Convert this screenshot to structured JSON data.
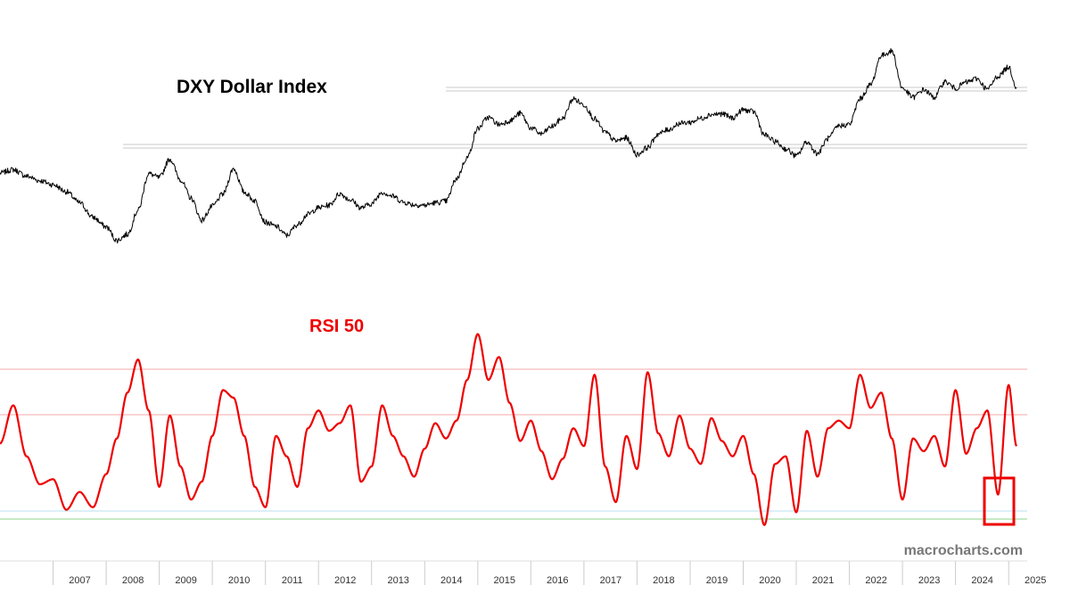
{
  "chart_data": [
    {
      "type": "line",
      "title": "DXY Dollar Index",
      "series": [
        {
          "color": "#000000",
          "x": [
            2006.0,
            2006.25,
            2006.5,
            2006.75,
            2007.0,
            2007.25,
            2007.5,
            2007.75,
            2008.0,
            2008.2,
            2008.4,
            2008.6,
            2008.8,
            2009.0,
            2009.2,
            2009.4,
            2009.6,
            2009.8,
            2010.0,
            2010.2,
            2010.4,
            2010.6,
            2010.8,
            2011.0,
            2011.2,
            2011.4,
            2011.6,
            2011.8,
            2012.0,
            2012.2,
            2012.4,
            2012.6,
            2012.8,
            2013.0,
            2013.2,
            2013.4,
            2013.6,
            2013.8,
            2014.0,
            2014.2,
            2014.4,
            2014.6,
            2014.8,
            2015.0,
            2015.2,
            2015.4,
            2015.6,
            2015.8,
            2016.0,
            2016.2,
            2016.4,
            2016.6,
            2016.8,
            2017.0,
            2017.2,
            2017.4,
            2017.6,
            2017.8,
            2018.0,
            2018.2,
            2018.4,
            2018.6,
            2018.8,
            2019.0,
            2019.2,
            2019.4,
            2019.6,
            2019.8,
            2020.0,
            2020.2,
            2020.4,
            2020.6,
            2020.8,
            2021.0,
            2021.2,
            2021.4,
            2021.6,
            2021.8,
            2022.0,
            2022.2,
            2022.4,
            2022.6,
            2022.8,
            2023.0,
            2023.2,
            2023.4,
            2023.6,
            2023.8,
            2024.0,
            2024.2,
            2024.4,
            2024.6,
            2024.8,
            2025.0,
            2025.15
          ],
          "values": [
            86.5,
            87.2,
            85.9,
            85.0,
            84.2,
            82.8,
            80.6,
            77.7,
            75.8,
            73.1,
            74.3,
            79.1,
            86.4,
            85.6,
            89.3,
            85.2,
            81.5,
            77.1,
            79.9,
            82.3,
            87.4,
            82.7,
            81.0,
            76.7,
            75.9,
            74.1,
            76.2,
            78.3,
            79.6,
            80.1,
            82.4,
            81.2,
            79.6,
            80.4,
            82.7,
            81.9,
            80.7,
            80.2,
            80.1,
            80.6,
            80.9,
            85.4,
            89.6,
            95.4,
            97.6,
            96.2,
            96.9,
            98.4,
            95.5,
            94.3,
            95.8,
            97.4,
            101.3,
            100.1,
            97.3,
            94.6,
            92.9,
            93.5,
            90.2,
            91.6,
            94.3,
            95.2,
            96.4,
            96.6,
            97.4,
            98.2,
            98.3,
            97.5,
            99.1,
            98.7,
            94.1,
            92.8,
            91.3,
            89.9,
            92.7,
            90.4,
            93.4,
            95.9,
            96.2,
            101.3,
            104.1,
            109.9,
            110.8,
            103.4,
            101.6,
            103.1,
            101.6,
            104.7,
            103.4,
            104.6,
            105.3,
            103.2,
            105.8,
            107.6,
            103.6
          ]
        }
      ],
      "ylim": [
        70,
        116
      ]
    },
    {
      "type": "line",
      "title": "RSI 50",
      "series": [
        {
          "color": "#ee0000",
          "x": [
            2006.0,
            2006.25,
            2006.5,
            2006.75,
            2007.0,
            2007.25,
            2007.5,
            2007.75,
            2008.0,
            2008.2,
            2008.4,
            2008.6,
            2008.8,
            2009.0,
            2009.2,
            2009.4,
            2009.6,
            2009.8,
            2010.0,
            2010.2,
            2010.4,
            2010.6,
            2010.8,
            2011.0,
            2011.2,
            2011.4,
            2011.6,
            2011.8,
            2012.0,
            2012.2,
            2012.4,
            2012.6,
            2012.8,
            2013.0,
            2013.2,
            2013.4,
            2013.6,
            2013.8,
            2014.0,
            2014.2,
            2014.4,
            2014.6,
            2014.8,
            2015.0,
            2015.2,
            2015.4,
            2015.6,
            2015.8,
            2016.0,
            2016.2,
            2016.4,
            2016.6,
            2016.8,
            2017.0,
            2017.2,
            2017.4,
            2017.6,
            2017.8,
            2018.0,
            2018.2,
            2018.4,
            2018.6,
            2018.8,
            2019.0,
            2019.2,
            2019.4,
            2019.6,
            2019.8,
            2020.0,
            2020.2,
            2020.4,
            2020.6,
            2020.8,
            2021.0,
            2021.2,
            2021.4,
            2021.6,
            2021.8,
            2022.0,
            2022.2,
            2022.4,
            2022.6,
            2022.8,
            2023.0,
            2023.2,
            2023.4,
            2023.6,
            2023.8,
            2024.0,
            2024.2,
            2024.4,
            2024.6,
            2024.8,
            2025.0,
            2025.15
          ],
          "values": [
            0.47,
            0.62,
            0.42,
            0.31,
            0.33,
            0.21,
            0.28,
            0.22,
            0.35,
            0.49,
            0.67,
            0.8,
            0.6,
            0.3,
            0.58,
            0.38,
            0.25,
            0.32,
            0.5,
            0.68,
            0.65,
            0.5,
            0.3,
            0.22,
            0.5,
            0.42,
            0.3,
            0.53,
            0.6,
            0.52,
            0.55,
            0.62,
            0.32,
            0.38,
            0.62,
            0.5,
            0.42,
            0.34,
            0.45,
            0.55,
            0.49,
            0.56,
            0.72,
            0.9,
            0.72,
            0.81,
            0.63,
            0.48,
            0.56,
            0.44,
            0.33,
            0.41,
            0.53,
            0.46,
            0.74,
            0.38,
            0.24,
            0.5,
            0.37,
            0.75,
            0.51,
            0.42,
            0.58,
            0.45,
            0.39,
            0.57,
            0.48,
            0.42,
            0.5,
            0.35,
            0.15,
            0.39,
            0.42,
            0.2,
            0.52,
            0.34,
            0.53,
            0.56,
            0.53,
            0.74,
            0.61,
            0.67,
            0.49,
            0.25,
            0.49,
            0.44,
            0.5,
            0.38,
            0.68,
            0.43,
            0.53,
            0.6,
            0.27,
            0.7,
            0.46
          ]
        }
      ],
      "ylim": [
        0.1,
        1.0
      ]
    }
  ],
  "axis": {
    "x_ticks": [
      "2007",
      "2008",
      "2009",
      "2010",
      "2011",
      "2012",
      "2013",
      "2014",
      "2015",
      "2016",
      "2017",
      "2018",
      "2019",
      "2020",
      "2021",
      "2022",
      "2023",
      "2024",
      "2025"
    ]
  },
  "watermark": "macrocharts.com"
}
